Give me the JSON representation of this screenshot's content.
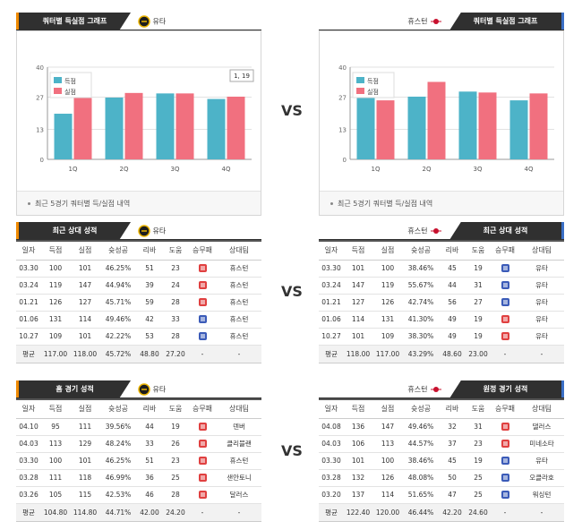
{
  "panels": {
    "home_chart": {
      "header": "쿼터별 득실점 그래프",
      "team": "유타",
      "note": "최근 5경기 쿼터별 득/실점 내역"
    },
    "away_chart": {
      "header": "쿼터별 득실점 그래프",
      "team": "휴스턴",
      "note": "최근 5경기 쿼터별 득/실점 내역"
    },
    "home_recent": {
      "header": "최근 상대 성적",
      "team": "유타"
    },
    "away_recent": {
      "header": "최근 상대 성적",
      "team": "휴스턴"
    },
    "home_games": {
      "header": "홈 경기 성적",
      "team": "유타"
    },
    "away_games": {
      "header": "원정 경기 성적",
      "team": "휴스턴"
    }
  },
  "vs_label": "VS",
  "chart_data": [
    {
      "type": "bar",
      "categories": [
        "1Q",
        "2Q",
        "3Q",
        "4Q"
      ],
      "series": [
        {
          "name": "득점",
          "values": [
            19.8,
            26.8,
            28.6,
            26.2
          ]
        },
        {
          "name": "실점",
          "values": [
            35.4,
            28.8,
            28.6,
            27.2
          ]
        }
      ],
      "ylim": [
        0,
        40
      ],
      "yticks": [
        0,
        13,
        27,
        40
      ],
      "legend": "top-left",
      "tooltip": "1, 19",
      "colors": {
        "score": "#4db3c8",
        "allowed": "#f1707f"
      }
    },
    {
      "type": "bar",
      "categories": [
        "1Q",
        "2Q",
        "3Q",
        "4Q"
      ],
      "series": [
        {
          "name": "득점",
          "values": [
            30.0,
            27.2,
            29.4,
            25.6
          ]
        },
        {
          "name": "실점",
          "values": [
            25.6,
            33.6,
            29.0,
            28.6
          ]
        }
      ],
      "ylim": [
        0,
        40
      ],
      "yticks": [
        0,
        13,
        27,
        40
      ],
      "legend": "top-left",
      "colors": {
        "score": "#4db3c8",
        "allowed": "#f1707f"
      }
    }
  ],
  "table_columns": [
    "일자",
    "득점",
    "실점",
    "슛성공",
    "리바",
    "도움",
    "승무패",
    "상대팀"
  ],
  "home_recent_rows": [
    [
      "03.30",
      "100",
      "101",
      "46.25%",
      "51",
      "23",
      "lose",
      "휴스턴"
    ],
    [
      "03.24",
      "119",
      "147",
      "44.94%",
      "39",
      "24",
      "lose",
      "휴스턴"
    ],
    [
      "01.21",
      "126",
      "127",
      "45.71%",
      "59",
      "28",
      "lose",
      "휴스턴"
    ],
    [
      "01.06",
      "131",
      "114",
      "49.46%",
      "42",
      "33",
      "win",
      "휴스턴"
    ],
    [
      "10.27",
      "109",
      "101",
      "42.22%",
      "53",
      "28",
      "win",
      "휴스턴"
    ]
  ],
  "home_recent_avg": [
    "평균",
    "117.00",
    "118.00",
    "45.72%",
    "48.80",
    "27.20",
    "-",
    "-"
  ],
  "away_recent_rows": [
    [
      "03.30",
      "101",
      "100",
      "38.46%",
      "45",
      "19",
      "win",
      "유타"
    ],
    [
      "03.24",
      "147",
      "119",
      "55.67%",
      "44",
      "31",
      "win",
      "유타"
    ],
    [
      "01.21",
      "127",
      "126",
      "42.74%",
      "56",
      "27",
      "win",
      "유타"
    ],
    [
      "01.06",
      "114",
      "131",
      "41.30%",
      "49",
      "19",
      "lose",
      "유타"
    ],
    [
      "10.27",
      "101",
      "109",
      "38.30%",
      "49",
      "19",
      "lose",
      "유타"
    ]
  ],
  "away_recent_avg": [
    "평균",
    "118.00",
    "117.00",
    "43.29%",
    "48.60",
    "23.00",
    "-",
    "-"
  ],
  "home_games_rows": [
    [
      "04.10",
      "95",
      "111",
      "39.56%",
      "44",
      "19",
      "lose",
      "덴버"
    ],
    [
      "04.03",
      "113",
      "129",
      "48.24%",
      "33",
      "26",
      "lose",
      "클리블랜"
    ],
    [
      "03.30",
      "100",
      "101",
      "46.25%",
      "51",
      "23",
      "lose",
      "휴스턴"
    ],
    [
      "03.28",
      "111",
      "118",
      "46.99%",
      "36",
      "25",
      "lose",
      "샌안토니"
    ],
    [
      "03.26",
      "105",
      "115",
      "42.53%",
      "46",
      "28",
      "lose",
      "달러스"
    ]
  ],
  "home_games_avg": [
    "평균",
    "104.80",
    "114.80",
    "44.71%",
    "42.00",
    "24.20",
    "-",
    "-"
  ],
  "away_games_rows": [
    [
      "04.08",
      "136",
      "147",
      "49.46%",
      "32",
      "31",
      "lose",
      "댈러스"
    ],
    [
      "04.03",
      "106",
      "113",
      "44.57%",
      "37",
      "23",
      "lose",
      "미네소타"
    ],
    [
      "03.30",
      "101",
      "100",
      "38.46%",
      "45",
      "19",
      "win",
      "유타"
    ],
    [
      "03.28",
      "132",
      "126",
      "48.08%",
      "50",
      "25",
      "win",
      "오클라호"
    ],
    [
      "03.20",
      "137",
      "114",
      "51.65%",
      "47",
      "25",
      "win",
      "워싱턴"
    ]
  ],
  "away_games_avg": [
    "평균",
    "122.40",
    "120.00",
    "46.44%",
    "42.20",
    "24.60",
    "-",
    "-"
  ],
  "colors": {
    "dark": "#303030",
    "home_accent": "#f08a00",
    "away_accent": "#3a6fc6",
    "win": "#3b5bb8",
    "lose": "#e04040"
  }
}
